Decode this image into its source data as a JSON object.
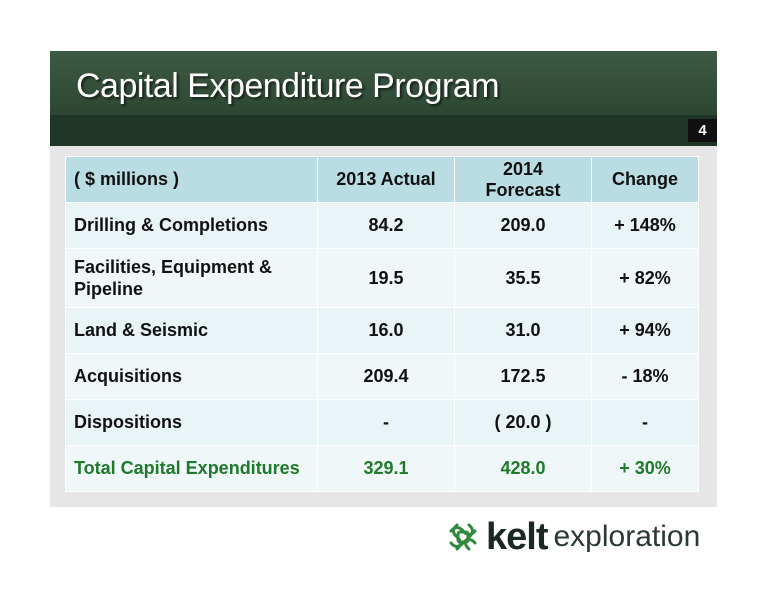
{
  "header": {
    "title": "Capital Expenditure Program",
    "page_number": "4"
  },
  "table": {
    "columns": [
      "( $ millions )",
      "2013 Actual",
      "2014 Forecast",
      "Change"
    ],
    "rows": [
      {
        "label": "Drilling & Completions",
        "actual_2013": "84.2",
        "forecast_2014": "209.0",
        "change": "+ 148%"
      },
      {
        "label": "Facilities, Equipment & Pipeline",
        "actual_2013": "19.5",
        "forecast_2014": "35.5",
        "change": "+ 82%"
      },
      {
        "label": "Land & Seismic",
        "actual_2013": "16.0",
        "forecast_2014": "31.0",
        "change": "+ 94%"
      },
      {
        "label": "Acquisitions",
        "actual_2013": "209.4",
        "forecast_2014": "172.5",
        "change": "- 18%"
      },
      {
        "label": "Dispositions",
        "actual_2013": "-",
        "forecast_2014": "( 20.0 )",
        "change": "-"
      }
    ],
    "total": {
      "label": "Total Capital Expenditures",
      "actual_2013": "329.1",
      "forecast_2014": "428.0",
      "change": "+ 30%"
    }
  },
  "logo": {
    "word_bold": "kelt",
    "word": "exploration",
    "icon": "celtic-knot-icon"
  },
  "colors": {
    "title_band": "#2f4a35",
    "header_row": "#b9dde2",
    "body_row": "#e8f4f6",
    "total_text": "#1e7a2a",
    "logo_green": "#2e8b3d"
  }
}
